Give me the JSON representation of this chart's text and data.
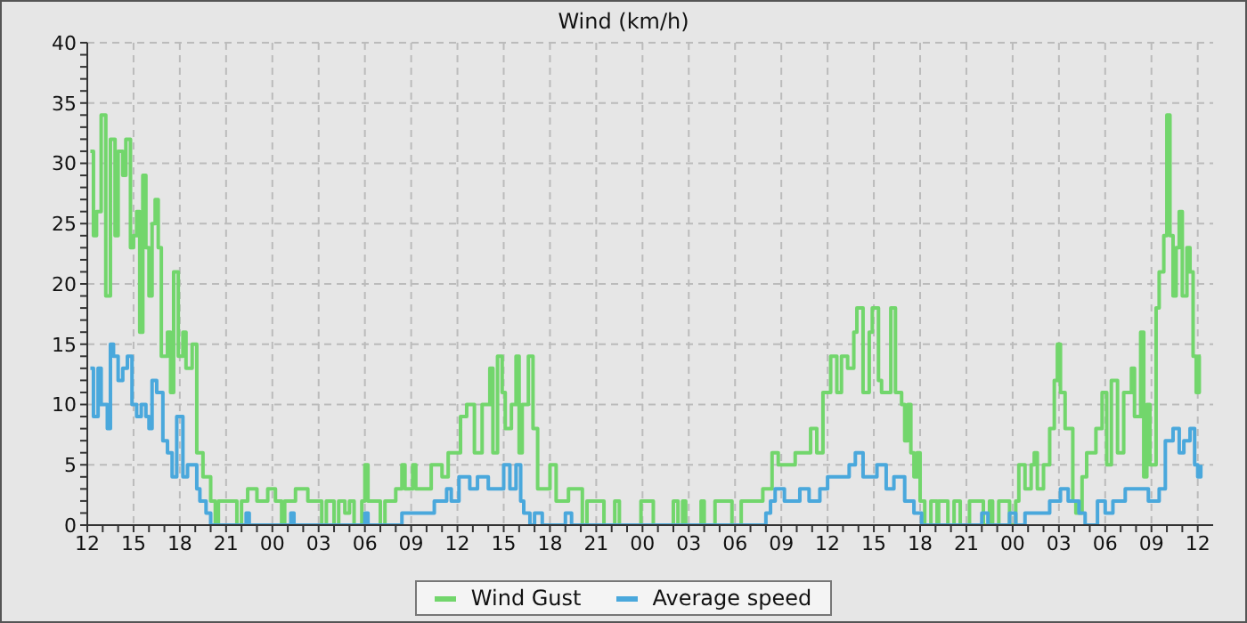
{
  "chart_data": {
    "type": "step",
    "title": "Wind (km/h)",
    "xlim": [
      12,
      85
    ],
    "xticks": [
      {
        "value": 12,
        "label": "12"
      },
      {
        "value": 13,
        "label": null
      },
      {
        "value": 14,
        "label": null
      },
      {
        "value": 15,
        "label": "15"
      },
      {
        "value": 16,
        "label": null
      },
      {
        "value": 17,
        "label": null
      },
      {
        "value": 18,
        "label": "18"
      },
      {
        "value": 19,
        "label": null
      },
      {
        "value": 20,
        "label": null
      },
      {
        "value": 21,
        "label": "21"
      },
      {
        "value": 22,
        "label": null
      },
      {
        "value": 23,
        "label": null
      },
      {
        "value": 24,
        "label": "00"
      },
      {
        "value": 25,
        "label": null
      },
      {
        "value": 26,
        "label": null
      },
      {
        "value": 27,
        "label": "03"
      },
      {
        "value": 28,
        "label": null
      },
      {
        "value": 29,
        "label": null
      },
      {
        "value": 30,
        "label": "06"
      },
      {
        "value": 31,
        "label": null
      },
      {
        "value": 32,
        "label": null
      },
      {
        "value": 33,
        "label": "09"
      },
      {
        "value": 34,
        "label": null
      },
      {
        "value": 35,
        "label": null
      },
      {
        "value": 36,
        "label": "12"
      },
      {
        "value": 37,
        "label": null
      },
      {
        "value": 38,
        "label": null
      },
      {
        "value": 39,
        "label": "15"
      },
      {
        "value": 40,
        "label": null
      },
      {
        "value": 41,
        "label": null
      },
      {
        "value": 42,
        "label": "18"
      },
      {
        "value": 43,
        "label": null
      },
      {
        "value": 44,
        "label": null
      },
      {
        "value": 45,
        "label": "21"
      },
      {
        "value": 46,
        "label": null
      },
      {
        "value": 47,
        "label": null
      },
      {
        "value": 48,
        "label": "00"
      },
      {
        "value": 49,
        "label": null
      },
      {
        "value": 50,
        "label": null
      },
      {
        "value": 51,
        "label": "03"
      },
      {
        "value": 52,
        "label": null
      },
      {
        "value": 53,
        "label": null
      },
      {
        "value": 54,
        "label": "06"
      },
      {
        "value": 55,
        "label": null
      },
      {
        "value": 56,
        "label": null
      },
      {
        "value": 57,
        "label": "09"
      },
      {
        "value": 58,
        "label": null
      },
      {
        "value": 59,
        "label": null
      },
      {
        "value": 60,
        "label": "12"
      },
      {
        "value": 61,
        "label": null
      },
      {
        "value": 62,
        "label": null
      },
      {
        "value": 63,
        "label": "15"
      },
      {
        "value": 64,
        "label": null
      },
      {
        "value": 65,
        "label": null
      },
      {
        "value": 66,
        "label": "18"
      },
      {
        "value": 67,
        "label": null
      },
      {
        "value": 68,
        "label": null
      },
      {
        "value": 69,
        "label": "21"
      },
      {
        "value": 70,
        "label": null
      },
      {
        "value": 71,
        "label": null
      },
      {
        "value": 72,
        "label": "00"
      },
      {
        "value": 73,
        "label": null
      },
      {
        "value": 74,
        "label": null
      },
      {
        "value": 75,
        "label": "03"
      },
      {
        "value": 76,
        "label": null
      },
      {
        "value": 77,
        "label": null
      },
      {
        "value": 78,
        "label": "06"
      },
      {
        "value": 79,
        "label": null
      },
      {
        "value": 80,
        "label": null
      },
      {
        "value": 81,
        "label": "09"
      },
      {
        "value": 82,
        "label": null
      },
      {
        "value": 83,
        "label": null
      },
      {
        "value": 84,
        "label": "12"
      }
    ],
    "ylim": [
      0,
      40
    ],
    "yticks": [
      0,
      {
        "value": 1,
        "label": null
      },
      {
        "value": 2,
        "label": null
      },
      {
        "value": 3,
        "label": null
      },
      {
        "value": 4,
        "label": null
      },
      5,
      {
        "value": 6,
        "label": null
      },
      {
        "value": 7,
        "label": null
      },
      {
        "value": 8,
        "label": null
      },
      {
        "value": 9,
        "label": null
      },
      10,
      {
        "value": 11,
        "label": null
      },
      {
        "value": 12,
        "label": null
      },
      {
        "value": 13,
        "label": null
      },
      {
        "value": 14,
        "label": null
      },
      15,
      {
        "value": 16,
        "label": null
      },
      {
        "value": 17,
        "label": null
      },
      {
        "value": 18,
        "label": null
      },
      {
        "value": 19,
        "label": null
      },
      20,
      {
        "value": 21,
        "label": null
      },
      {
        "value": 22,
        "label": null
      },
      {
        "value": 23,
        "label": null
      },
      {
        "value": 24,
        "label": null
      },
      25,
      {
        "value": 26,
        "label": null
      },
      {
        "value": 27,
        "label": null
      },
      {
        "value": 28,
        "label": null
      },
      {
        "value": 29,
        "label": null
      },
      30,
      {
        "value": 31,
        "label": null
      },
      {
        "value": 32,
        "label": null
      },
      {
        "value": 33,
        "label": null
      },
      {
        "value": 34,
        "label": null
      },
      35,
      {
        "value": 36,
        "label": null
      },
      {
        "value": 37,
        "label": null
      },
      {
        "value": 38,
        "label": null
      },
      {
        "value": 39,
        "label": null
      },
      40
    ],
    "grid": true,
    "legend": "bottom",
    "series": [
      {
        "name": "Wind Gust",
        "color": "#72d66c",
        "x": [
          12.2,
          12.4,
          12.6,
          12.9,
          13.2,
          13.5,
          13.8,
          14.0,
          14.3,
          14.5,
          14.8,
          15.0,
          15.2,
          15.4,
          15.6,
          15.8,
          16.0,
          16.2,
          16.4,
          16.6,
          16.8,
          17.2,
          17.4,
          17.6,
          17.9,
          18.2,
          18.4,
          18.8,
          19.1,
          19.5,
          20.0,
          20.3,
          20.5,
          21.7,
          22.0,
          22.4,
          23.0,
          23.7,
          24.2,
          24.6,
          24.8,
          25.5,
          26.3,
          27.2,
          27.5,
          28.0,
          28.3,
          28.7,
          29.0,
          29.3,
          29.8,
          30.0,
          30.2,
          31.0,
          31.3,
          32.0,
          32.4,
          32.6,
          33.1,
          33.3,
          34.3,
          35.0,
          35.4,
          36.2,
          36.6,
          37.1,
          37.6,
          38.1,
          38.3,
          38.6,
          38.9,
          39.1,
          39.5,
          39.8,
          40.0,
          40.2,
          40.6,
          40.9,
          41.2,
          42.0,
          42.4,
          43.2,
          44.1,
          44.4,
          45.5,
          46.2,
          46.5,
          47.9,
          48.7,
          50.0,
          50.3,
          50.6,
          50.8,
          51.8,
          52.0,
          52.7,
          53.8,
          54.4,
          55.8,
          56.4,
          56.8,
          57.9,
          58.9,
          59.3,
          59.7,
          60.2,
          60.6,
          60.9,
          61.3,
          61.7,
          61.9,
          62.3,
          62.7,
          62.9,
          63.3,
          63.5,
          64.1,
          64.4,
          64.8,
          65.0,
          65.2,
          65.4,
          65.6,
          65.8,
          66.0,
          66.3,
          66.7,
          67.1,
          67.2,
          67.8,
          68.2,
          68.6,
          69.2,
          70.1,
          70.5,
          70.7,
          71.1,
          71.8,
          72.2,
          72.4,
          72.8,
          73.2,
          73.4,
          73.6,
          74.0,
          74.4,
          74.7,
          74.9,
          75.1,
          75.4,
          75.9,
          76.1,
          76.5,
          76.8,
          77.4,
          77.8,
          78.1,
          78.4,
          78.8,
          79.2,
          79.7,
          79.9,
          80.3,
          80.5,
          80.7,
          80.9,
          81.3,
          81.5,
          81.8,
          82.0,
          82.2,
          82.4,
          82.6,
          82.8,
          83.0,
          83.3,
          83.5,
          83.7,
          83.9,
          84.1,
          84.2
        ],
        "values": [
          31,
          24,
          26,
          34,
          19,
          32,
          24,
          31,
          29,
          32,
          23,
          24,
          26,
          16,
          29,
          23,
          19,
          25,
          27,
          23,
          14,
          16,
          11,
          21,
          14,
          16,
          13,
          15,
          6,
          4,
          2,
          0,
          2,
          0,
          2,
          3,
          2,
          3,
          2,
          0,
          2,
          3,
          2,
          0,
          2,
          0,
          2,
          1,
          2,
          0,
          2,
          5,
          2,
          0,
          2,
          3,
          5,
          3,
          5,
          3,
          5,
          4,
          6,
          9,
          10,
          6,
          10,
          13,
          6,
          14,
          11,
          8,
          10,
          14,
          6,
          10,
          14,
          8,
          3,
          5,
          2,
          3,
          0,
          2,
          0,
          2,
          0,
          2,
          0,
          2,
          0,
          2,
          0,
          2,
          0,
          2,
          0,
          2,
          3,
          6,
          5,
          6,
          8,
          6,
          11,
          14,
          11,
          14,
          13,
          16,
          18,
          11,
          16,
          18,
          12,
          11,
          18,
          11,
          10,
          7,
          10,
          6,
          4,
          6,
          2,
          0,
          2,
          0,
          2,
          0,
          2,
          0,
          2,
          0,
          2,
          0,
          2,
          0,
          2,
          5,
          3,
          5,
          6,
          3,
          5,
          8,
          12,
          15,
          11,
          8,
          2,
          1,
          4,
          6,
          8,
          11,
          5,
          12,
          6,
          11,
          13,
          9,
          16,
          4,
          10,
          5,
          18,
          21,
          24,
          34,
          24,
          19,
          23,
          26,
          19,
          23,
          21,
          14,
          11,
          14,
          14
        ]
      },
      {
        "name": "Average speed",
        "color": "#4aa8dc",
        "x": [
          12.2,
          12.4,
          12.7,
          12.9,
          13.3,
          13.5,
          13.7,
          14.0,
          14.3,
          14.6,
          14.9,
          15.2,
          15.5,
          15.8,
          16.0,
          16.2,
          16.5,
          16.9,
          17.2,
          17.5,
          17.8,
          18.2,
          18.5,
          19.1,
          19.3,
          19.7,
          20.0,
          22.3,
          22.5,
          25.2,
          25.4,
          30.0,
          30.2,
          32.4,
          34.5,
          35.3,
          35.6,
          36.1,
          36.8,
          37.3,
          38.0,
          39.0,
          39.4,
          39.8,
          40.1,
          40.3,
          40.7,
          41.0,
          41.5,
          43.0,
          43.4,
          56.0,
          56.3,
          56.6,
          57.2,
          58.2,
          58.8,
          59.5,
          60.0,
          60.7,
          61.4,
          61.8,
          62.3,
          63.2,
          63.8,
          64.3,
          65.0,
          65.6,
          66.1,
          70.0,
          70.4,
          71.8,
          72.2,
          72.8,
          74.4,
          75.1,
          75.6,
          76.3,
          76.7,
          77.5,
          78.0,
          78.5,
          79.3,
          80.8,
          81.5,
          81.9,
          82.4,
          82.8,
          83.1,
          83.5,
          83.8,
          84.0,
          84.2
        ],
        "values": [
          13,
          9,
          13,
          10,
          8,
          15,
          14,
          12,
          13,
          14,
          10,
          9,
          10,
          9,
          8,
          12,
          11,
          7,
          6,
          4,
          9,
          4,
          5,
          3,
          2,
          1,
          0,
          1,
          0,
          1,
          0,
          1,
          0,
          1,
          2,
          3,
          2,
          4,
          3,
          4,
          3,
          5,
          3,
          5,
          2,
          1,
          0,
          1,
          0,
          1,
          0,
          1,
          2,
          3,
          2,
          3,
          2,
          3,
          4,
          4,
          5,
          6,
          4,
          5,
          3,
          4,
          2,
          1,
          0,
          1,
          0,
          1,
          0,
          1,
          2,
          3,
          2,
          1,
          0,
          2,
          1,
          2,
          3,
          2,
          3,
          7,
          8,
          6,
          7,
          8,
          5,
          4,
          5
        ]
      }
    ]
  }
}
